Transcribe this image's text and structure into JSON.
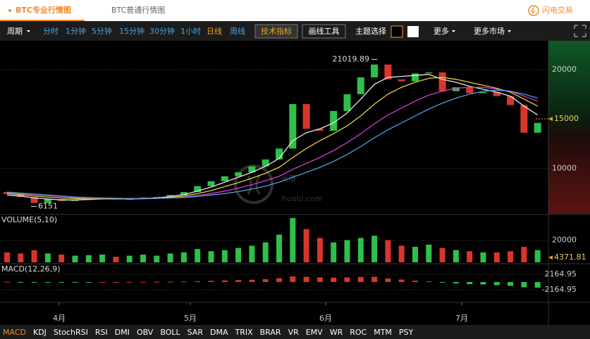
{
  "tabs": [
    "BTC专业行情图",
    "BTC普通行情图"
  ],
  "brand": "闪电交易",
  "toolbar": {
    "period": "周期",
    "intervals": [
      "分时",
      "1分钟",
      "5分钟",
      "15分钟",
      "30分钟",
      "1小时",
      "日线",
      "周线"
    ],
    "buttons": [
      "技术指标",
      "画线工具"
    ],
    "theme": "主题选择",
    "more": "更多",
    "more_markets": "更多市场"
  },
  "watermark": {
    "cn": "火币",
    "en": "huobi.com"
  },
  "x_labels": [
    "4月",
    "5月",
    "6月",
    "7月"
  ],
  "chart_data": [
    {
      "type": "candlestick",
      "open": [
        7600,
        7400,
        7100,
        6500,
        6900,
        6700,
        6800,
        6900,
        6950,
        6850,
        6900,
        7050,
        7100,
        7300,
        7600,
        8200,
        8700,
        9200,
        9600,
        10200,
        10900,
        12000,
        16500,
        14000,
        13800,
        15800,
        17500,
        19200,
        20500,
        19000,
        18800,
        19600,
        19700,
        17800,
        18200,
        17600,
        17700,
        17300,
        16400,
        13600
      ],
      "close": [
        7400,
        7100,
        6500,
        6900,
        6700,
        6800,
        6900,
        6950,
        6850,
        6900,
        7050,
        7100,
        7300,
        7600,
        8200,
        8700,
        9200,
        9600,
        10200,
        10900,
        12000,
        16500,
        14000,
        13800,
        15800,
        17500,
        19200,
        20500,
        19000,
        18800,
        19600,
        19700,
        17800,
        18200,
        17600,
        17700,
        17300,
        16400,
        13600,
        14600
      ],
      "lines": [
        {
          "color": "#e8e8e8",
          "values": [
            7300,
            7200,
            7000,
            6900,
            6800,
            6800,
            6850,
            6900,
            6900,
            6900,
            6950,
            7000,
            7150,
            7350,
            7700,
            8100,
            8600,
            9100,
            9600,
            10200,
            11000,
            12800,
            13600,
            14000,
            14600,
            15600,
            17000,
            18500,
            19200,
            19300,
            19400,
            19500,
            19000,
            18700,
            18300,
            18000,
            17700,
            17300,
            16300,
            15400
          ]
        },
        {
          "color": "#e6d23a",
          "values": [
            7450,
            7350,
            7200,
            7100,
            7000,
            6950,
            6900,
            6900,
            6900,
            6900,
            6920,
            6950,
            7050,
            7200,
            7450,
            7750,
            8150,
            8550,
            9000,
            9500,
            10100,
            11100,
            12000,
            12800,
            13500,
            14300,
            15300,
            16500,
            17500,
            18200,
            18700,
            19100,
            19200,
            19000,
            18700,
            18400,
            18100,
            17700,
            17000,
            16300
          ]
        },
        {
          "color": "#d63cd6",
          "values": [
            7550,
            7450,
            7350,
            7250,
            7150,
            7050,
            7000,
            6980,
            6960,
            6950,
            6950,
            6960,
            7000,
            7080,
            7250,
            7450,
            7700,
            8000,
            8350,
            8750,
            9200,
            9900,
            10500,
            11100,
            11800,
            12600,
            13500,
            14500,
            15400,
            16100,
            16800,
            17400,
            17800,
            18100,
            18200,
            18200,
            18000,
            17800,
            17300,
            16800
          ]
        },
        {
          "color": "#4f9be0",
          "values": [
            7600,
            7500,
            7400,
            7300,
            7200,
            7100,
            7050,
            7000,
            6980,
            6960,
            6960,
            6980,
            7000,
            7050,
            7150,
            7300,
            7450,
            7650,
            7900,
            8200,
            8600,
            9100,
            9600,
            10100,
            10700,
            11400,
            12200,
            13100,
            13900,
            14600,
            15300,
            16000,
            16600,
            17100,
            17500,
            17800,
            17900,
            17800,
            17500,
            17100
          ]
        }
      ],
      "ylim": [
        5400,
        22900
      ],
      "yticks": [
        10000,
        20000
      ],
      "grid": true,
      "high_label": 21019.89,
      "low_label": 6151,
      "last_price": 15000,
      "up_color": "#2fbf4a",
      "down_color": "#d9362b"
    },
    {
      "type": "bar",
      "title": "VOLUME(5,10)",
      "values": [
        9000,
        8000,
        11000,
        8000,
        7000,
        6000,
        6500,
        7000,
        5000,
        6000,
        7000,
        6000,
        8000,
        9000,
        12000,
        10000,
        11000,
        13000,
        15000,
        18000,
        25000,
        40000,
        30000,
        22000,
        18000,
        20000,
        22000,
        24000,
        20000,
        15000,
        14000,
        16000,
        13000,
        11000,
        10000,
        9000,
        9000,
        10000,
        14000,
        11000
      ],
      "ylim": [
        0,
        42500
      ],
      "yticks": [
        20000
      ],
      "grid": true,
      "last_value": 4371.81
    },
    {
      "type": "bar",
      "title": "MACD(12,26,9)",
      "values": [
        80,
        -60,
        -150,
        -100,
        -80,
        -50,
        -20,
        10,
        0,
        20,
        40,
        60,
        100,
        150,
        250,
        350,
        450,
        550,
        650,
        800,
        1100,
        1600,
        1500,
        1300,
        1250,
        1300,
        1450,
        1500,
        1000,
        700,
        400,
        200,
        -200,
        -400,
        -600,
        -700,
        -900,
        -1100,
        -1500,
        -1600
      ],
      "ylim": [
        -5400,
        5000
      ],
      "yticks": [
        2164.95,
        -2164.95
      ],
      "grid": true
    }
  ],
  "indicators": [
    "MACD",
    "KDJ",
    "StochRSI",
    "RSI",
    "DMI",
    "OBV",
    "BOLL",
    "SAR",
    "DMA",
    "TRIX",
    "BRAR",
    "VR",
    "EMV",
    "WR",
    "ROC",
    "MTM",
    "PSY"
  ]
}
